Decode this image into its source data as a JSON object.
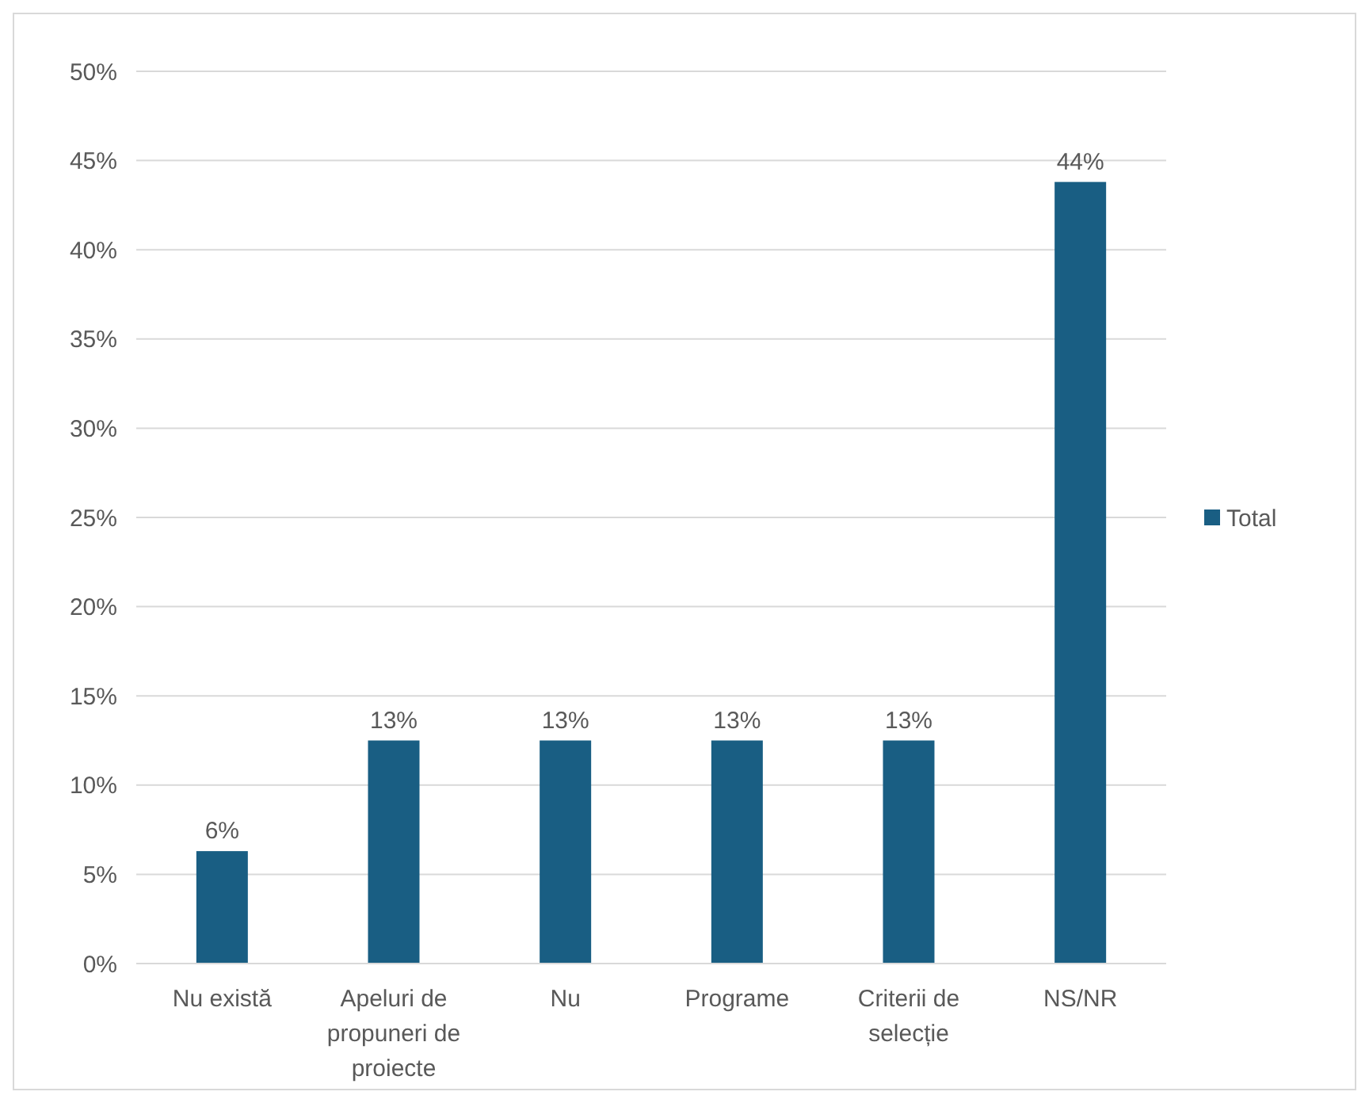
{
  "chart_data": {
    "type": "bar",
    "categories": [
      "Nu există",
      "Apeluri de propuneri de proiecte",
      "Nu",
      "Programe",
      "Criterii de selecție",
      "NS/NR"
    ],
    "series": [
      {
        "name": "Total",
        "color": "#195e83",
        "values": [
          6.3,
          12.5,
          12.5,
          12.5,
          12.5,
          43.8
        ],
        "value_labels": [
          "6%",
          "13%",
          "13%",
          "13%",
          "13%",
          "44%"
        ]
      }
    ],
    "ylim": [
      0,
      50
    ],
    "yticks": [
      {
        "value": 0,
        "label": "0%"
      },
      {
        "value": 5,
        "label": "5%"
      },
      {
        "value": 10,
        "label": "10%"
      },
      {
        "value": 15,
        "label": "15%"
      },
      {
        "value": 20,
        "label": "20%"
      },
      {
        "value": 25,
        "label": "25%"
      },
      {
        "value": 30,
        "label": "30%"
      },
      {
        "value": 35,
        "label": "35%"
      },
      {
        "value": 40,
        "label": "40%"
      },
      {
        "value": 45,
        "label": "45%"
      },
      {
        "value": 50,
        "label": "50%"
      }
    ],
    "grid": "y",
    "legend": "right"
  }
}
